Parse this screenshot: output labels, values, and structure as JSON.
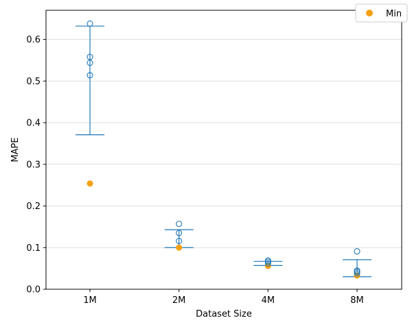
{
  "colors": {
    "series": "#1f77b4",
    "min_marker": "#f5a00f",
    "grid": "#d3d3d3",
    "axis": "#000000",
    "background": "#ffffff"
  },
  "chart_data": {
    "type": "scatter",
    "title": "",
    "xlabel": "Dataset Size",
    "ylabel": "MAPE",
    "categories": [
      "1M",
      "2M",
      "4M",
      "8M"
    ],
    "ylim": [
      0.0,
      0.67
    ],
    "yticks": [
      "0.0",
      "0.1",
      "0.2",
      "0.3",
      "0.4",
      "0.5",
      "0.6"
    ],
    "grid": "horizontal",
    "legend": {
      "position": "top-right",
      "entries": [
        "Min"
      ]
    },
    "groups": [
      {
        "category": "1M",
        "points": [
          0.638,
          0.558,
          0.544,
          0.514
        ],
        "whisker_top": 0.632,
        "whisker_bottom": 0.371,
        "min": 0.254
      },
      {
        "category": "2M",
        "points": [
          0.157,
          0.135,
          0.116
        ],
        "whisker_top": 0.143,
        "whisker_bottom": 0.1,
        "min": 0.1
      },
      {
        "category": "4M",
        "points": [
          0.069,
          0.066,
          0.062
        ],
        "whisker_top": 0.067,
        "whisker_bottom": 0.057,
        "min": 0.056
      },
      {
        "category": "8M",
        "points": [
          0.091,
          0.045,
          0.042,
          0.038
        ],
        "whisker_top": 0.071,
        "whisker_bottom": 0.03,
        "min": 0.033
      }
    ]
  }
}
